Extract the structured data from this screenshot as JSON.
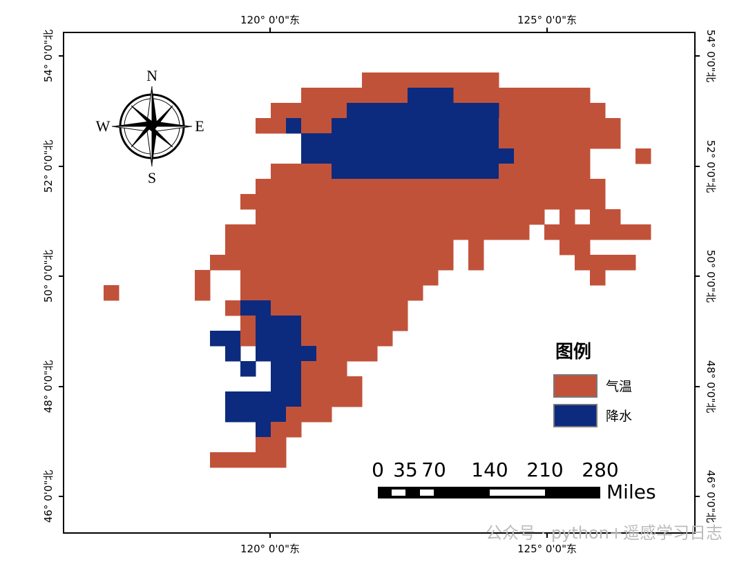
{
  "map": {
    "longitude_labels": [
      "120° 0'0\"东",
      "125° 0'0\"东"
    ],
    "latitude_labels": [
      "54° 0'0\"北",
      "52° 0'0\"北",
      "50° 0'0\"北",
      "48° 0'0\"北",
      "46° 0'0\"北"
    ],
    "compass": {
      "north": "N",
      "south": "S",
      "west": "W",
      "east": "E"
    },
    "legend": {
      "title": "图例",
      "items": [
        {
          "label": "气温",
          "color": "#c1523a"
        },
        {
          "label": "降水",
          "color": "#0c2b7e"
        }
      ]
    },
    "scale_bar": {
      "labels": [
        "0",
        "35",
        "70",
        "140",
        "210",
        "280"
      ],
      "unit": "Miles"
    },
    "watermark": "公众号 · python+遥感学习日志"
  }
}
